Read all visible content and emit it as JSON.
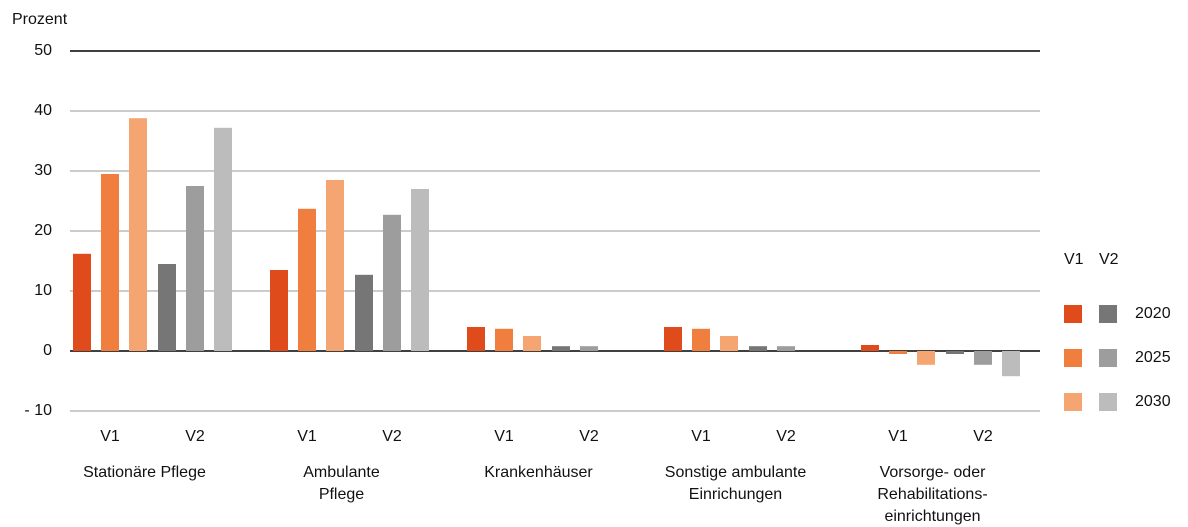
{
  "chart_data": {
    "type": "bar",
    "y_label": "Prozent",
    "categories": [
      [
        "Stationäre Pflege"
      ],
      [
        "Ambulante",
        "Pflege"
      ],
      [
        "Krankenhäuser"
      ],
      [
        "Sonstige ambulante",
        "Einrichungen"
      ],
      [
        "Vorsorge- oder",
        "Rehabilitations-",
        "einrichtungen"
      ]
    ],
    "groups": [
      "V1",
      "V2"
    ],
    "series": [
      {
        "name": "2020",
        "colors": {
          "V1": "#e04b1c",
          "V2": "#767676"
        },
        "values": {
          "V1": [
            16.2,
            13.5,
            4,
            4,
            1
          ],
          "V2": [
            14.5,
            12.7,
            0.8,
            0.8,
            -0.5
          ]
        }
      },
      {
        "name": "2025",
        "colors": {
          "V1": "#ef7e3f",
          "V2": "#9d9d9d"
        },
        "values": {
          "V1": [
            29.5,
            23.7,
            3.7,
            3.7,
            -0.5
          ],
          "V2": [
            27.5,
            22.7,
            0.8,
            0.8,
            -2.3
          ]
        }
      },
      {
        "name": "2030",
        "colors": {
          "V1": "#f5a571",
          "V2": "#bcbcbc"
        },
        "values": {
          "V1": [
            38.8,
            28.5,
            2.5,
            2.5,
            -2.3
          ],
          "V2": [
            37.2,
            27,
            0,
            0,
            -4.2
          ]
        }
      }
    ],
    "ylim": [
      -10,
      50
    ],
    "yticks": [
      {
        "value": -10,
        "label": "- 10"
      },
      0,
      10,
      20,
      30,
      40,
      50
    ],
    "grid": true
  }
}
